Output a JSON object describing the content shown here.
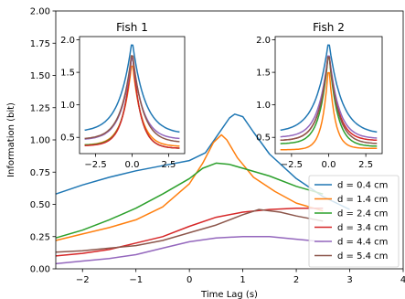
{
  "chart_data": [
    {
      "id": "main",
      "type": "line",
      "title": "",
      "xlabel": "Time Lag (s)",
      "ylabel": "Information (bit)",
      "xlim": [
        -2.5,
        4
      ],
      "ylim": [
        0,
        2
      ],
      "xticks": [
        -2,
        -1,
        0,
        1,
        2,
        3,
        4
      ],
      "xtick_labels": [
        "−2",
        "−1",
        "0",
        "1",
        "2",
        "3",
        "4"
      ],
      "yticks": [
        0,
        0.25,
        0.5,
        0.75,
        1.0,
        1.25,
        1.5,
        1.75,
        2.0
      ],
      "ytick_labels": [
        "0.00",
        "0.25",
        "0.50",
        "0.75",
        "1.00",
        "1.25",
        "1.50",
        "1.75",
        "2.00"
      ],
      "grid": false,
      "legend": {
        "position": "lower-right"
      },
      "series": [
        {
          "name": "d = 0.4 cm",
          "color": "#1f77b4",
          "points": [
            [
              -2.5,
              0.58
            ],
            [
              -2.0,
              0.65
            ],
            [
              -1.5,
              0.71
            ],
            [
              -1.0,
              0.76
            ],
            [
              -0.5,
              0.8
            ],
            [
              0.0,
              0.84
            ],
            [
              0.3,
              0.9
            ],
            [
              0.55,
              1.05
            ],
            [
              0.75,
              1.17
            ],
            [
              0.85,
              1.2
            ],
            [
              1.0,
              1.18
            ],
            [
              1.2,
              1.06
            ],
            [
              1.5,
              0.89
            ],
            [
              2.0,
              0.7
            ],
            [
              2.5,
              0.56
            ],
            [
              3.0,
              0.46
            ]
          ]
        },
        {
          "name": "d = 1.4 cm",
          "color": "#ff7f0e",
          "points": [
            [
              -2.5,
              0.22
            ],
            [
              -2.0,
              0.27
            ],
            [
              -1.5,
              0.32
            ],
            [
              -1.0,
              0.38
            ],
            [
              -0.5,
              0.48
            ],
            [
              0.0,
              0.66
            ],
            [
              0.25,
              0.82
            ],
            [
              0.45,
              0.98
            ],
            [
              0.6,
              1.04
            ],
            [
              0.7,
              1.0
            ],
            [
              0.9,
              0.86
            ],
            [
              1.2,
              0.71
            ],
            [
              1.6,
              0.6
            ],
            [
              2.0,
              0.51
            ],
            [
              2.5,
              0.45
            ]
          ]
        },
        {
          "name": "d = 2.4 cm",
          "color": "#2ca02c",
          "points": [
            [
              -2.5,
              0.24
            ],
            [
              -2.0,
              0.3
            ],
            [
              -1.5,
              0.38
            ],
            [
              -1.0,
              0.47
            ],
            [
              -0.5,
              0.58
            ],
            [
              0.0,
              0.7
            ],
            [
              0.25,
              0.78
            ],
            [
              0.5,
              0.82
            ],
            [
              0.75,
              0.81
            ],
            [
              1.0,
              0.78
            ],
            [
              1.5,
              0.72
            ],
            [
              2.0,
              0.64
            ],
            [
              2.5,
              0.58
            ]
          ]
        },
        {
          "name": "d = 3.4 cm",
          "color": "#d62728",
          "points": [
            [
              -2.5,
              0.1
            ],
            [
              -2.0,
              0.12
            ],
            [
              -1.5,
              0.15
            ],
            [
              -1.0,
              0.2
            ],
            [
              -0.5,
              0.25
            ],
            [
              0.0,
              0.33
            ],
            [
              0.5,
              0.4
            ],
            [
              1.0,
              0.44
            ],
            [
              1.5,
              0.46
            ],
            [
              2.0,
              0.47
            ],
            [
              2.5,
              0.47
            ]
          ]
        },
        {
          "name": "d = 4.4 cm",
          "color": "#9467bd",
          "points": [
            [
              -2.5,
              0.04
            ],
            [
              -2.0,
              0.06
            ],
            [
              -1.5,
              0.08
            ],
            [
              -1.0,
              0.11
            ],
            [
              -0.5,
              0.16
            ],
            [
              0.0,
              0.21
            ],
            [
              0.5,
              0.24
            ],
            [
              1.0,
              0.25
            ],
            [
              1.5,
              0.25
            ],
            [
              2.0,
              0.23
            ],
            [
              2.5,
              0.21
            ]
          ]
        },
        {
          "name": "d = 5.4 cm",
          "color": "#8c564b",
          "points": [
            [
              -2.5,
              0.13
            ],
            [
              -2.0,
              0.14
            ],
            [
              -1.5,
              0.16
            ],
            [
              -1.0,
              0.18
            ],
            [
              -0.5,
              0.22
            ],
            [
              0.0,
              0.28
            ],
            [
              0.5,
              0.34
            ],
            [
              1.0,
              0.42
            ],
            [
              1.3,
              0.46
            ],
            [
              1.7,
              0.44
            ],
            [
              2.0,
              0.41
            ],
            [
              2.5,
              0.37
            ]
          ]
        }
      ]
    },
    {
      "id": "inset1",
      "type": "line",
      "title": "Fish 1",
      "xlim": [
        -3.6,
        3.6
      ],
      "ylim": [
        0.25,
        2.05
      ],
      "xticks": [
        -2.5,
        0,
        2.5
      ],
      "xtick_labels": [
        "−2.5",
        "0.0",
        "2.5"
      ],
      "yticks": [
        0.5,
        1.0,
        1.5,
        2.0
      ],
      "ytick_labels": [
        "0.5",
        "1.0",
        "1.5",
        "2.0"
      ],
      "series": [
        {
          "name": "d = 0.4 cm",
          "color": "#1f77b4",
          "peak": 2.0,
          "tails": [
            0.58,
            0.55
          ],
          "width": 0.85
        },
        {
          "name": "d = 1.4 cm",
          "color": "#ff7f0e",
          "peak": 1.7,
          "tails": [
            0.38,
            0.36
          ],
          "width": 0.6
        },
        {
          "name": "d = 2.4 cm",
          "color": "#2ca02c",
          "peak": 1.85,
          "tails": [
            0.38,
            0.33
          ],
          "width": 0.55
        },
        {
          "name": "d = 3.4 cm",
          "color": "#d62728",
          "peak": 1.85,
          "tails": [
            0.37,
            0.33
          ],
          "width": 0.55
        },
        {
          "name": "d = 4.4 cm",
          "color": "#9467bd",
          "peak": 1.8,
          "tails": [
            0.46,
            0.47
          ],
          "width": 0.7
        },
        {
          "name": "d = 5.4 cm",
          "color": "#8c564b",
          "peak": 1.85,
          "tails": [
            0.47,
            0.42
          ],
          "width": 0.7
        }
      ]
    },
    {
      "id": "inset2",
      "type": "line",
      "title": "Fish 2",
      "xlim": [
        -3.6,
        3.6
      ],
      "ylim": [
        0.25,
        2.05
      ],
      "xticks": [
        -2.5,
        0,
        2.5
      ],
      "xtick_labels": [
        "−2.5",
        "0.0",
        "2.5"
      ],
      "yticks": [
        0.5,
        1.0,
        1.5,
        2.0
      ],
      "ytick_labels": [
        "0.5",
        "1.0",
        "1.5",
        "2.0"
      ],
      "series": [
        {
          "name": "d = 0.4 cm",
          "color": "#1f77b4",
          "peak": 2.0,
          "tails": [
            0.58,
            0.55
          ],
          "width": 0.85
        },
        {
          "name": "d = 1.4 cm",
          "color": "#ff7f0e",
          "peak": 1.65,
          "tails": [
            0.31,
            0.33
          ],
          "width": 0.4
        },
        {
          "name": "d = 2.4 cm",
          "color": "#2ca02c",
          "peak": 1.85,
          "tails": [
            0.4,
            0.36
          ],
          "width": 0.55
        },
        {
          "name": "d = 3.4 cm",
          "color": "#d62728",
          "peak": 1.85,
          "tails": [
            0.45,
            0.45
          ],
          "width": 0.6
        },
        {
          "name": "d = 4.4 cm",
          "color": "#9467bd",
          "peak": 1.85,
          "tails": [
            0.5,
            0.48
          ],
          "width": 0.65
        },
        {
          "name": "d = 5.4 cm",
          "color": "#8c564b",
          "peak": 1.85,
          "tails": [
            0.45,
            0.4
          ],
          "width": 0.6
        }
      ]
    }
  ]
}
